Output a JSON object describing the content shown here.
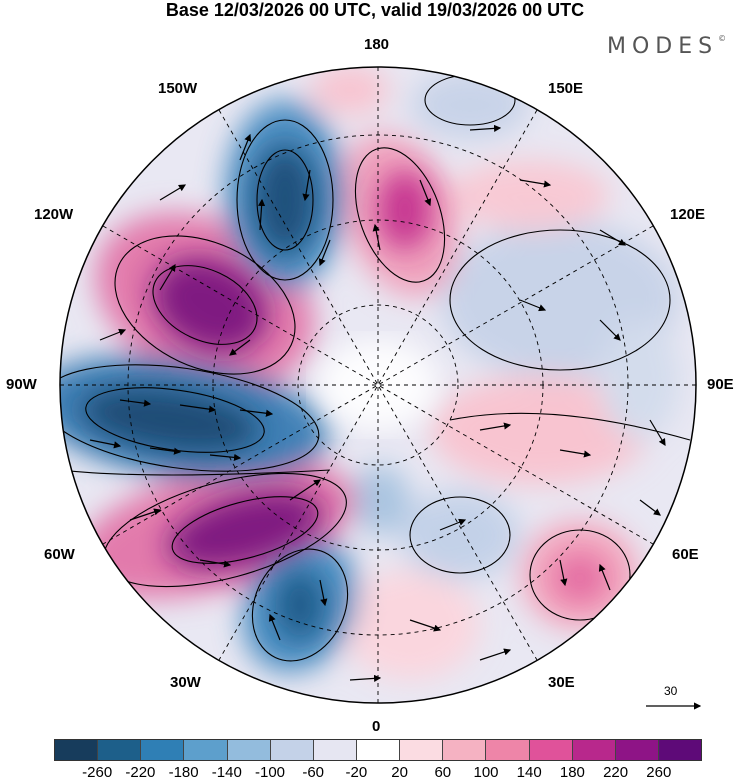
{
  "title": "Base 12/03/2026 00 UTC, valid 19/03/2026 00 UTC",
  "logo": "MODES",
  "logo_mark": "©",
  "longitude_labels": {
    "n180": "180",
    "e150": "150E",
    "e120": "120E",
    "e90": "90E",
    "e60": "60E",
    "e30": "30E",
    "z0": "0",
    "w30": "30W",
    "w60": "60W",
    "w90": "90W",
    "w120": "120W",
    "w150": "150W"
  },
  "reference_vector": {
    "value": "30"
  },
  "colorbar": {
    "colors": [
      "#173c5c",
      "#1d5f8a",
      "#2f7fb5",
      "#5d9fcc",
      "#93bcdd",
      "#c4d2e8",
      "#e6e6f2",
      "#ffffff",
      "#fbdce2",
      "#f5b2c2",
      "#ee85a8",
      "#e0529a",
      "#b8288c",
      "#8e1486",
      "#5e0a78"
    ],
    "tick_labels": [
      "-260",
      "-220",
      "-180",
      "-140",
      "-100",
      "-60",
      "-20",
      "20",
      "60",
      "100",
      "140",
      "180",
      "220",
      "260"
    ]
  },
  "anomaly_centers": [
    {
      "sign": "negative",
      "value": -280
    },
    {
      "sign": "negative",
      "value": -240
    },
    {
      "sign": "negative",
      "value": -220
    },
    {
      "sign": "positive",
      "value": 260
    },
    {
      "sign": "positive",
      "value": 270
    },
    {
      "sign": "positive",
      "value": 180
    },
    {
      "sign": "negative",
      "value": -80
    },
    {
      "sign": "positive",
      "value": 100
    },
    {
      "sign": "positive",
      "value": 140
    }
  ]
}
